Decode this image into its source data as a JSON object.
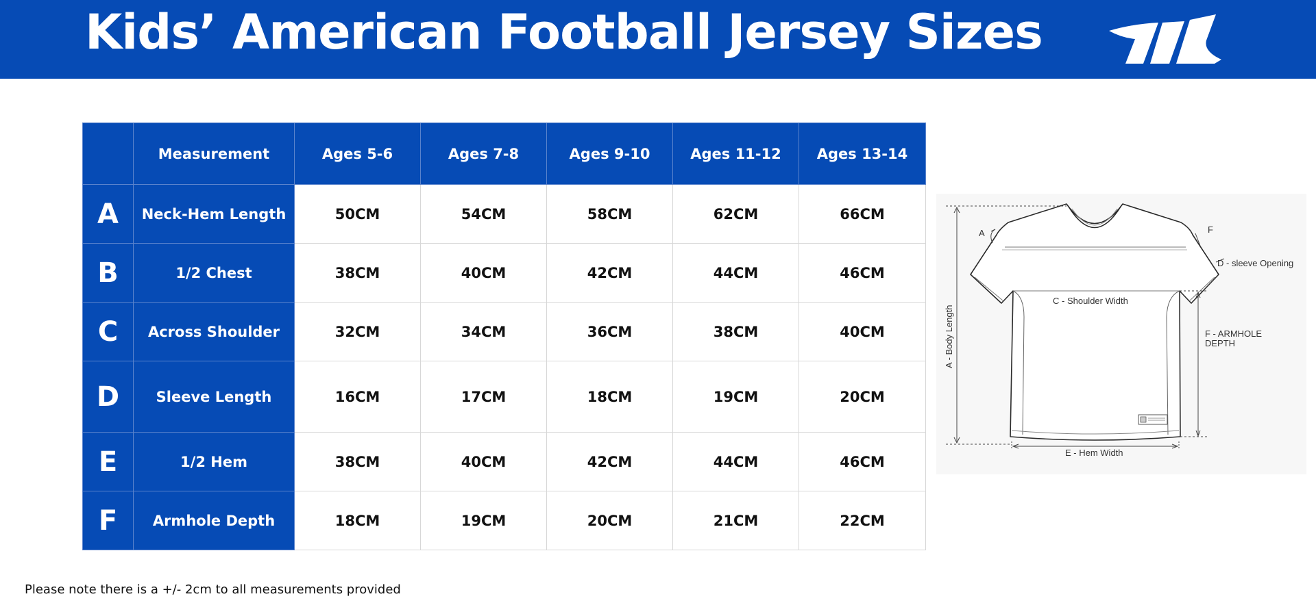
{
  "header": {
    "title": "Kids’ American Football Jersey Sizes",
    "logo_icon": "brand-logo-stripes-icon",
    "background_color": "#064bb5",
    "text_color": "#ffffff"
  },
  "table": {
    "header_row": [
      "",
      "Measurement",
      "Ages 5-6",
      "Ages 7-8",
      "Ages 9-10",
      "Ages 11-12",
      "Ages 13-14"
    ],
    "rows": [
      {
        "letter": "A",
        "measurement": "Neck-Hem Length",
        "values": [
          "50CM",
          "54CM",
          "58CM",
          "62CM",
          "66CM"
        ]
      },
      {
        "letter": "B",
        "measurement": "1/2 Chest",
        "values": [
          "38CM",
          "40CM",
          "42CM",
          "44CM",
          "46CM"
        ]
      },
      {
        "letter": "C",
        "measurement": "Across Shoulder",
        "values": [
          "32CM",
          "34CM",
          "36CM",
          "38CM",
          "40CM"
        ]
      },
      {
        "letter": "D",
        "measurement": "Sleeve Length",
        "values": [
          "16CM",
          "17CM",
          "18CM",
          "19CM",
          "20CM"
        ]
      },
      {
        "letter": "E",
        "measurement": "1/2 Hem",
        "values": [
          "38CM",
          "40CM",
          "42CM",
          "44CM",
          "46CM"
        ]
      },
      {
        "letter": "F",
        "measurement": "Armhole Depth",
        "values": [
          "18CM",
          "19CM",
          "20CM",
          "21CM",
          "22CM"
        ]
      }
    ]
  },
  "diagram": {
    "label_a": "A",
    "label_f": "F",
    "sleeve_opening": "D - sleeve Opening",
    "shoulder_width": "C - Shoulder Width",
    "body_length": "A - Body Length",
    "armhole_depth_line1": "F - ARMHOLE",
    "armhole_depth_line2": "DEPTH",
    "hem_width": "E - Hem Width"
  },
  "footer": {
    "note": "Please note there is a +/- 2cm to all measurements provided"
  }
}
